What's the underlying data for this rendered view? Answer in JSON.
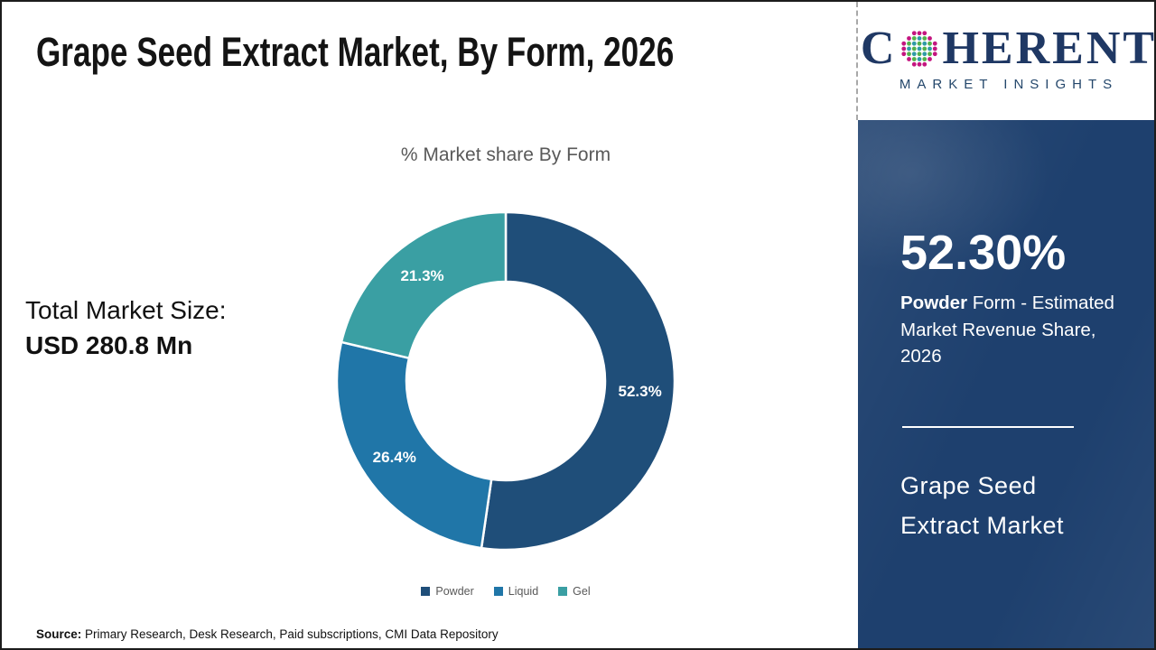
{
  "page": {
    "title": "Grape Seed Extract Market, By Form, 2026",
    "source_label": "Source:",
    "source_text": " Primary Research, Desk Research, Paid subscriptions, CMI Data Repository"
  },
  "logo": {
    "word_start": "C",
    "word_end": "HERENT",
    "subtitle": "MARKET INSIGHTS",
    "text_color": "#1F3864",
    "globe_colors": {
      "pink": "#C4157F",
      "teal": "#2E9BA6",
      "green": "#53B14A"
    }
  },
  "left_panel": {
    "total_label": "Total Market Size:",
    "total_value": "USD 280.8 Mn"
  },
  "chart_data": {
    "type": "pie",
    "donut": true,
    "title": "% Market share By Form",
    "categories": [
      "Powder",
      "Liquid",
      "Gel"
    ],
    "values": [
      52.3,
      26.4,
      21.3
    ],
    "labels": [
      "52.3%",
      "26.4%",
      "21.3%"
    ],
    "colors": [
      "#1F4E79",
      "#2076A8",
      "#3A9FA3"
    ],
    "start_angle_deg": 0,
    "direction": "clockwise",
    "legend_position": "bottom",
    "label_color": "#ffffff"
  },
  "sidebar": {
    "bg_color": "#1E406E",
    "stat_value": "52.30%",
    "stat_bold": "Powder",
    "stat_rest": " Form - Estimated Market Revenue Share, 2026",
    "market_line1": "Grape Seed",
    "market_line2": "Extract Market"
  }
}
